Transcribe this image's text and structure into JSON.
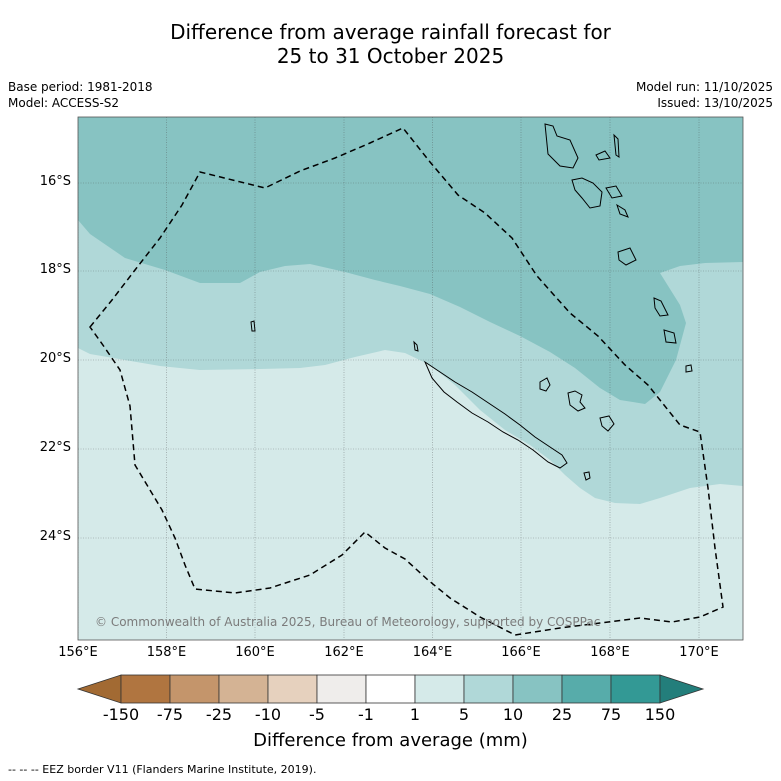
{
  "title": {
    "line1": "Difference from average rainfall forecast for",
    "line2": "25 to 31 October 2025"
  },
  "info": {
    "base_period": "Base period: 1981-2018",
    "model": "Model: ACCESS-S2",
    "model_run": "Model run: 11/10/2025",
    "issued": "Issued: 13/10/2025"
  },
  "map": {
    "lat_labels": [
      "16°S",
      "18°S",
      "20°S",
      "22°S",
      "24°S"
    ],
    "lon_labels": [
      "156°E",
      "158°E",
      "160°E",
      "162°E",
      "164°E",
      "166°E",
      "168°E",
      "170°E"
    ],
    "credit": "© Commonwealth of Australia 2025, Bureau of Meteorology, supported by COSPPac",
    "zone_colors": {
      "band_10_to_25": "#87c3c2",
      "band_5_to_10": "#b0d8d8",
      "band_1_to_5": "#d5eae9"
    }
  },
  "colorbar": {
    "ticks": [
      "-150",
      "-75",
      "-25",
      "-10",
      "-5",
      "-1",
      "1",
      "5",
      "10",
      "25",
      "75",
      "150"
    ],
    "colors": [
      "#a26a33",
      "#b07540",
      "#c4956b",
      "#d4b394",
      "#e6d1be",
      "#efedeb",
      "#ffffff",
      "#d5eae9",
      "#b0d8d8",
      "#87c3c2",
      "#57acaa",
      "#339995",
      "#237e7b"
    ],
    "title": "Difference from average (mm)"
  },
  "footer": "-- -- -- EEZ border V11 (Flanders Marine Institute, 2019)."
}
